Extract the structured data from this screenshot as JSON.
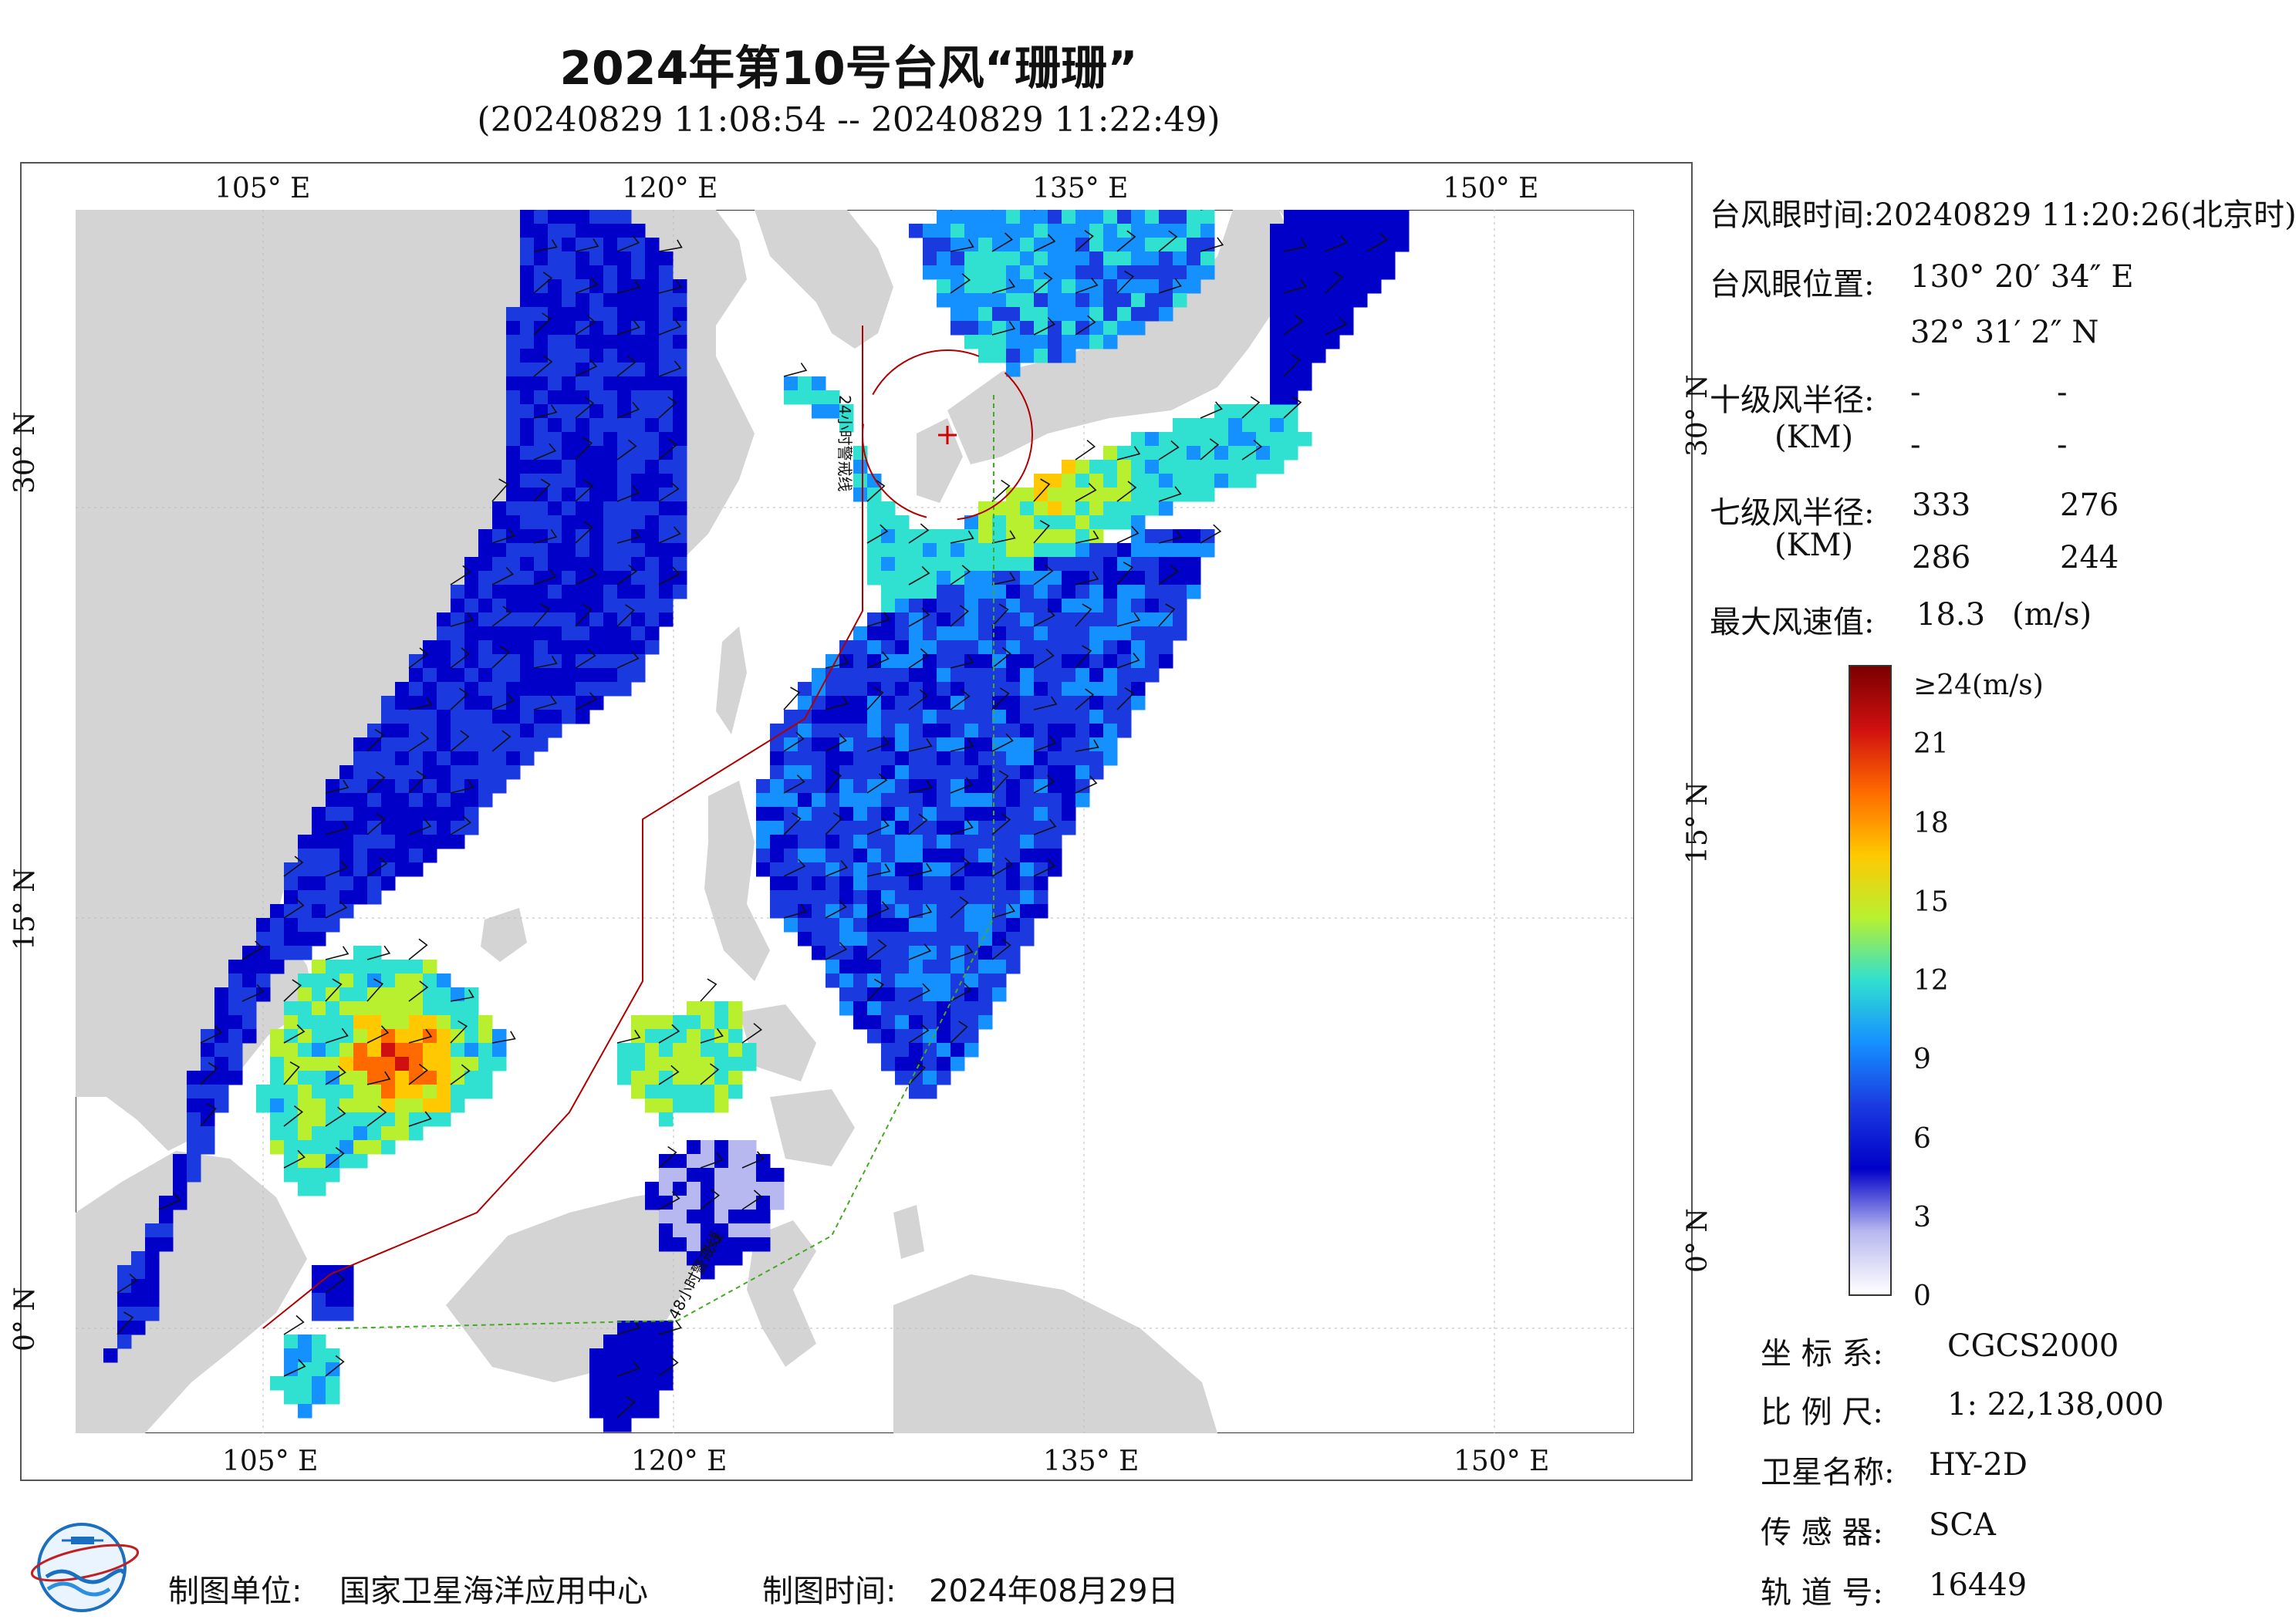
{
  "title": "2024年第10号台风“珊珊”",
  "subtitle": "(20240829 11:08:54 -- 20240829 11:22:49)",
  "axes": {
    "top": [
      "105° E",
      "120° E",
      "135° E",
      "150° E"
    ],
    "bottom": [
      "105° E",
      "120° E",
      "135° E",
      "150° E"
    ],
    "left": [
      "30° N",
      "15° N",
      "0° N"
    ],
    "right": [
      "30° N",
      "15° N",
      "0° N"
    ]
  },
  "track_labels": [
    "24小时警戒线",
    "48小时警戒线"
  ],
  "info": {
    "eye_time_label": "台风眼时间:",
    "eye_time_value": "20240829 11:20:26(北京时)",
    "eye_pos_label": "台风眼位置:",
    "eye_lon": "130° 20′ 34″ E",
    "eye_lat": "32° 31′ 2″ N",
    "r10_label": "十级风半径:",
    "r10_unit": "(KM)",
    "r10_values": [
      "-",
      "-",
      "-",
      "-"
    ],
    "r7_label": "七级风半径:",
    "r7_unit": "(KM)",
    "r7_values": [
      "333",
      "276",
      "286",
      "244"
    ],
    "max_wind_label": "最大风速值:",
    "max_wind_value": "18.3",
    "max_wind_unit": "(m/s)"
  },
  "colorbar": {
    "top_label": "≥24(m/s)",
    "ticks": [
      "21",
      "18",
      "15",
      "12",
      "9",
      "6",
      "3",
      "0"
    ],
    "colors": [
      "#7a0000",
      "#d01010",
      "#ff6a00",
      "#ffc800",
      "#b8f030",
      "#30e0d0",
      "#1590ff",
      "#1a3ae0",
      "#0000c8",
      "#b8b8f0",
      "#ffffff"
    ]
  },
  "meta": {
    "crs_label": "坐 标 系:",
    "crs_value": "CGCS2000",
    "scale_label": "比 例 尺:",
    "scale_value": "1: 22,138,000",
    "sat_label": "卫星名称:",
    "sat_value": "HY-2D",
    "sensor_label": "传 感 器:",
    "sensor_value": "SCA",
    "orbit_label": "轨 道 号:",
    "orbit_value": "16449"
  },
  "footer": {
    "org_label": "制图单位:",
    "org_value": "国家卫星海洋应用中心",
    "date_label": "制图时间:",
    "date_value": "2024年08月29日"
  }
}
